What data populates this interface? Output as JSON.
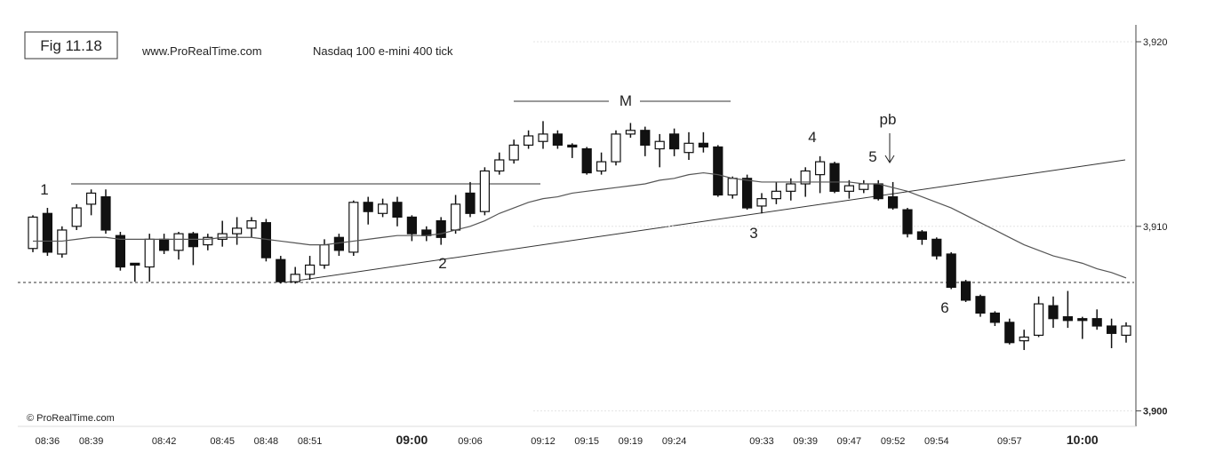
{
  "chart_data": {
    "type": "candlestick",
    "title": "Fig 11.18",
    "source": "www.ProRealTime.com",
    "subtitle": "Nasdaq 100  e-mini  400 tick",
    "credit": "© ProRealTime.com",
    "categories": [
      null,
      "08:36",
      null,
      null,
      "08:39",
      null,
      null,
      null,
      null,
      "08:42",
      null,
      null,
      null,
      "08:45",
      null,
      null,
      "08:48",
      null,
      null,
      "08:51",
      null,
      null,
      null,
      null,
      null,
      null,
      "09:00",
      null,
      null,
      null,
      "09:06",
      null,
      null,
      null,
      null,
      "09:12",
      null,
      null,
      "09:15",
      null,
      null,
      "09:19",
      null,
      null,
      "09:24",
      null,
      null,
      null,
      null,
      null,
      "09:33",
      null,
      null,
      "09:39",
      null,
      null,
      "09:47",
      null,
      null,
      "09:52",
      null,
      null,
      "09:54",
      null,
      null,
      null,
      null,
      "09:57",
      null,
      null,
      null,
      null,
      "10:00",
      null,
      null,
      null
    ],
    "open": [
      3908.8,
      3910.7,
      3908.5,
      3910,
      3911.2,
      3911.6,
      3909.5,
      3908,
      3907.8,
      3909.3,
      3908.7,
      3909.6,
      3909,
      3909.3,
      3909.6,
      3909.9,
      3910.2,
      3908.2,
      3907,
      3907.4,
      3907.9,
      3909.4,
      3908.6,
      3911.3,
      3910.7,
      3911.3,
      3910.5,
      3909.8,
      3910.3,
      3909.8,
      3911.8,
      3910.8,
      3913,
      3913.6,
      3914.4,
      3914.6,
      3915,
      3914.4,
      3914.2,
      3913,
      3913.5,
      3915,
      3915.2,
      3914.2,
      3915,
      3914,
      3914.5,
      3914.3,
      3911.7,
      3912.6,
      3911.1,
      3911.5,
      3911.9,
      3912.3,
      3912.8,
      3913.4,
      3911.9,
      3912,
      3912.3,
      3911.6,
      3910.9,
      3909.7,
      3909.3,
      3908.5,
      3907,
      3906.2,
      3905.3,
      3904.8,
      3903.8,
      3904.1,
      3905.7,
      3905.1,
      3905,
      3905,
      3904.6,
      3904.1
    ],
    "high": [
      3910.6,
      3911,
      3910,
      3911.2,
      3912,
      3912,
      3909.7,
      3908,
      3909.6,
      3909.6,
      3909.7,
      3909.7,
      3909.6,
      3910.3,
      3910.5,
      3910.5,
      3910.4,
      3908.4,
      3907.8,
      3908.4,
      3909.3,
      3909.6,
      3911.4,
      3911.6,
      3911.5,
      3911.6,
      3910.6,
      3910,
      3910.5,
      3911.7,
      3912.4,
      3913.2,
      3914,
      3914.7,
      3915.2,
      3915.7,
      3915.2,
      3914.5,
      3914.3,
      3914,
      3915.2,
      3915.6,
      3915.4,
      3915,
      3915.3,
      3915.1,
      3915.1,
      3914.4,
      3912.7,
      3912.8,
      3911.8,
      3912.4,
      3912.6,
      3913.2,
      3913.8,
      3913.5,
      3912.5,
      3912.5,
      3912.5,
      3912.4,
      3911,
      3909.8,
      3909.4,
      3908.6,
      3907.1,
      3906.3,
      3905.4,
      3905,
      3904.4,
      3906.2,
      3906.2,
      3906.5,
      3905.1,
      3905.5,
      3905,
      3904.8
    ],
    "low": [
      3908.6,
      3908.4,
      3908.3,
      3909.8,
      3910.6,
      3909.6,
      3907.6,
      3907,
      3907,
      3908.5,
      3908.2,
      3907.9,
      3908.7,
      3908.9,
      3909,
      3909.4,
      3908.1,
      3906.9,
      3906.9,
      3907.1,
      3907.7,
      3908.4,
      3908.4,
      3910.1,
      3910.5,
      3910,
      3909.2,
      3909.2,
      3909,
      3909.6,
      3910.5,
      3910.6,
      3912.8,
      3913.4,
      3914.2,
      3914.2,
      3914.2,
      3913.7,
      3912.8,
      3912.8,
      3913.3,
      3914.8,
      3913.8,
      3913.2,
      3913.8,
      3913.6,
      3914,
      3911.6,
      3911.5,
      3910.9,
      3910.7,
      3911.2,
      3911.4,
      3911.6,
      3911.8,
      3911.8,
      3911.5,
      3911.8,
      3911.4,
      3910.9,
      3909.4,
      3909,
      3908.2,
      3906.6,
      3905.9,
      3905.1,
      3904.6,
      3903.6,
      3903.3,
      3904,
      3904.5,
      3904.5,
      3903.9,
      3904.4,
      3903.4,
      3903.7
    ],
    "close": [
      3910.5,
      3908.6,
      3909.8,
      3911,
      3911.8,
      3909.8,
      3907.8,
      3907.9,
      3909.3,
      3908.7,
      3909.6,
      3908.9,
      3909.4,
      3909.6,
      3909.9,
      3910.3,
      3908.3,
      3907,
      3907.4,
      3907.9,
      3909,
      3908.7,
      3911.3,
      3910.8,
      3911.2,
      3910.5,
      3909.6,
      3909.5,
      3909.4,
      3911.2,
      3910.7,
      3913,
      3913.6,
      3914.4,
      3914.9,
      3915,
      3914.4,
      3914.3,
      3912.9,
      3913.5,
      3915,
      3915.2,
      3914.4,
      3914.6,
      3914.2,
      3914.5,
      3914.3,
      3911.7,
      3912.6,
      3911,
      3911.5,
      3911.9,
      3912.3,
      3913,
      3913.5,
      3911.9,
      3912.2,
      3912.3,
      3911.5,
      3911,
      3909.6,
      3909.3,
      3908.4,
      3906.7,
      3906,
      3905.3,
      3904.8,
      3903.7,
      3904,
      3905.8,
      3905,
      3904.9,
      3904.9,
      3904.6,
      3904.2,
      3904.6
    ],
    "moving_average": [
      3909.2,
      3909.2,
      3909.2,
      3909.3,
      3909.4,
      3909.4,
      3909.3,
      3909.3,
      3909.3,
      3909.3,
      3909.3,
      3909.3,
      3909.3,
      3909.4,
      3909.4,
      3909.4,
      3909.3,
      3909.2,
      3909.1,
      3909.0,
      3909.0,
      3909.1,
      3909.2,
      3909.3,
      3909.4,
      3909.5,
      3909.5,
      3909.5,
      3909.6,
      3909.8,
      3910.0,
      3910.3,
      3910.7,
      3911.0,
      3911.3,
      3911.5,
      3911.6,
      3911.8,
      3911.9,
      3912.0,
      3912.1,
      3912.2,
      3912.3,
      3912.5,
      3912.6,
      3912.8,
      3912.9,
      3912.8,
      3912.6,
      3912.5,
      3912.4,
      3912.4,
      3912.4,
      3912.4,
      3912.4,
      3912.4,
      3912.4,
      3912.3,
      3912.3,
      3912.1,
      3911.9,
      3911.6,
      3911.3,
      3911.0,
      3910.6,
      3910.2,
      3909.8,
      3909.4,
      3909.0,
      3908.7,
      3908.4,
      3908.2,
      3908.0,
      3907.7,
      3907.5,
      3907.2
    ],
    "ylim": [
      3899.5,
      3921.3
    ],
    "yticks": [
      {
        "value": 3900,
        "label": "3,900"
      },
      {
        "value": 3910,
        "label": "3,910"
      },
      {
        "value": 3920,
        "label": "3,920"
      }
    ],
    "annotations": [
      "1",
      "2",
      "3",
      "4",
      "5",
      "6",
      "M",
      "pb"
    ]
  }
}
